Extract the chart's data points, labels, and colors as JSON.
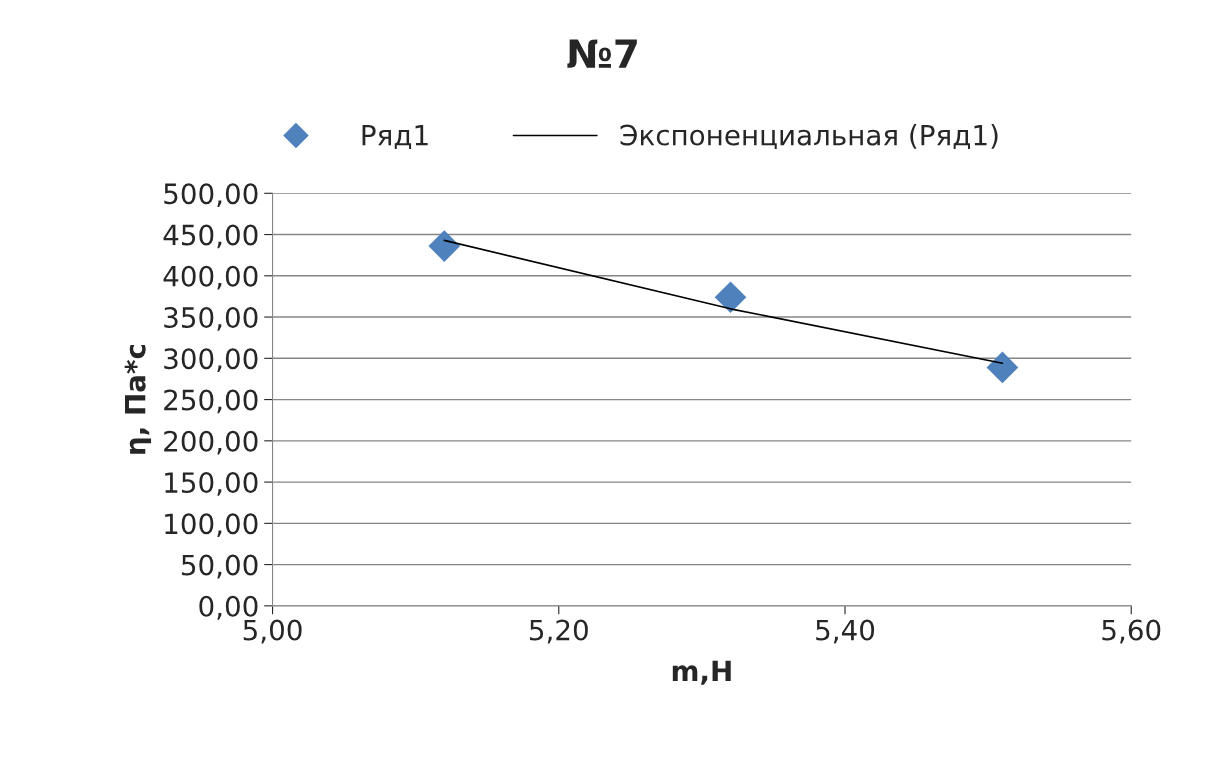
{
  "chart_data": {
    "type": "scatter",
    "title": "№7",
    "xlabel": "m,H",
    "ylabel": "η, Па*с",
    "series": [
      {
        "name": "Ряд1",
        "color": "#4f81bd",
        "marker": "diamond",
        "x": [
          5.12,
          5.32,
          5.51
        ],
        "values": [
          436,
          374,
          289
        ]
      },
      {
        "name": "Экспоненциальная (Ряд1)",
        "type": "line",
        "color": "#000000",
        "marker": "none",
        "line_style": "solid",
        "x": [
          5.12,
          5.32,
          5.51
        ],
        "values": [
          443,
          360,
          294
        ]
      }
    ],
    "xlim": [
      5.0,
      5.6
    ],
    "xticks": [
      {
        "value": 5.0,
        "label": "5,00"
      },
      {
        "value": 5.2,
        "label": "5,20"
      },
      {
        "value": 5.4,
        "label": "5,40"
      },
      {
        "value": 5.6,
        "label": "5,60"
      }
    ],
    "ylim": [
      0,
      500
    ],
    "yticks": [
      {
        "value": 0,
        "label": "0,00"
      },
      {
        "value": 50,
        "label": "50,00"
      },
      {
        "value": 100,
        "label": "100,00"
      },
      {
        "value": 150,
        "label": "150,00"
      },
      {
        "value": 200,
        "label": "200,00"
      },
      {
        "value": 250,
        "label": "250,00"
      },
      {
        "value": 300,
        "label": "300,00"
      },
      {
        "value": 350,
        "label": "350,00"
      },
      {
        "value": 400,
        "label": "400,00"
      },
      {
        "value": 450,
        "label": "450,00"
      },
      {
        "value": 500,
        "label": "500,00"
      }
    ],
    "grid": "y",
    "legend": "top"
  }
}
